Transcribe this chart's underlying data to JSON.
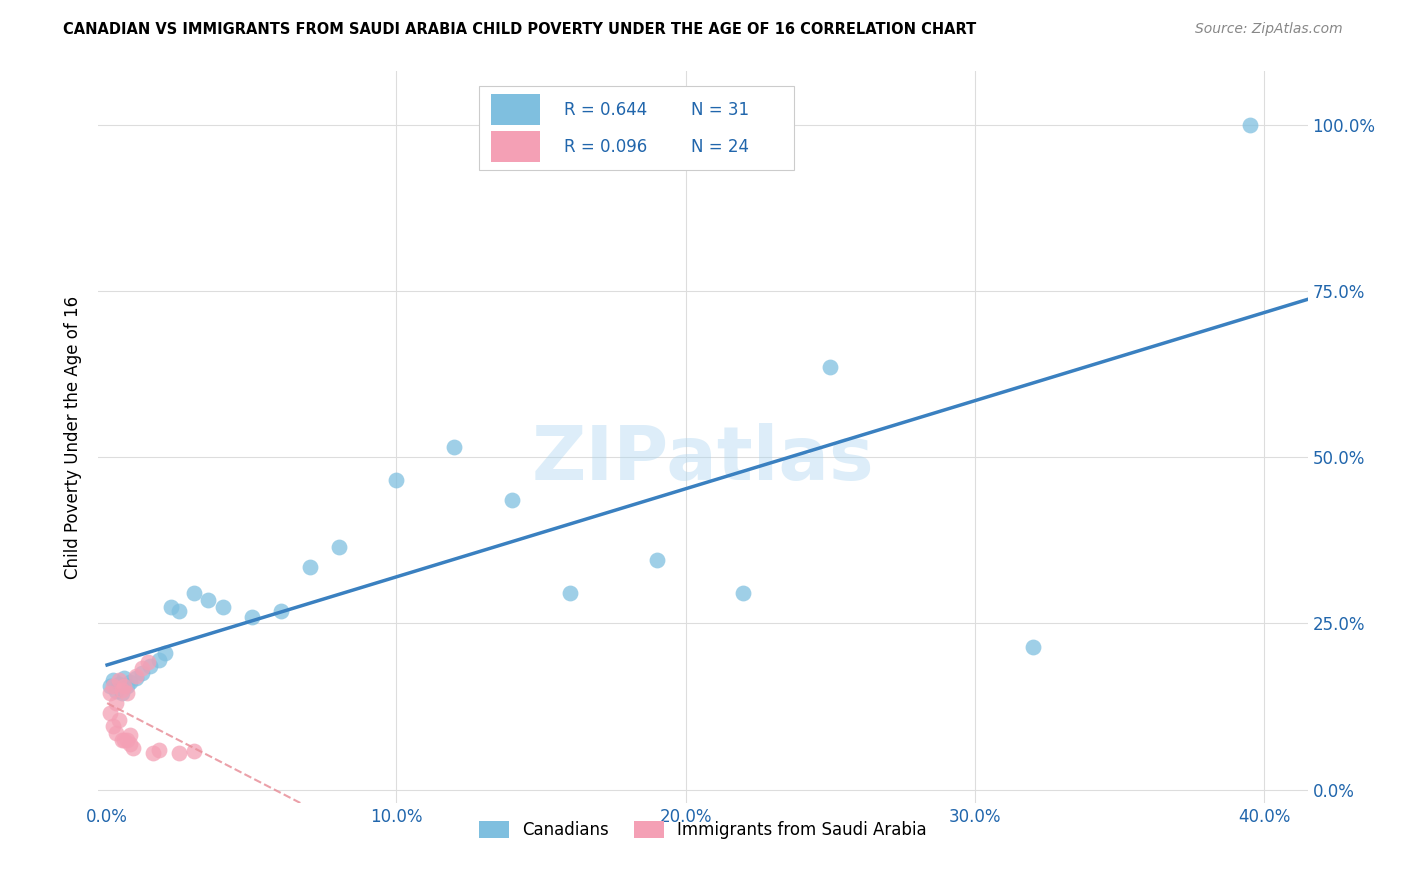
{
  "title": "CANADIAN VS IMMIGRANTS FROM SAUDI ARABIA CHILD POVERTY UNDER THE AGE OF 16 CORRELATION CHART",
  "source": "Source: ZipAtlas.com",
  "ylabel": "Child Poverty Under the Age of 16",
  "R_canadian": 0.644,
  "N_canadian": 31,
  "R_saudi": 0.096,
  "N_saudi": 24,
  "canadian_color": "#7fbfdf",
  "saudi_color": "#f4a0b5",
  "canadian_line_color": "#3a80c0",
  "saudi_line_color": "#e8909a",
  "watermark": "ZIPatlas",
  "background_color": "#ffffff",
  "grid_color": "#dddddd",
  "can_x": [
    0.001,
    0.002,
    0.003,
    0.004,
    0.005,
    0.006,
    0.007,
    0.008,
    0.01,
    0.012,
    0.015,
    0.018,
    0.02,
    0.022,
    0.025,
    0.03,
    0.035,
    0.04,
    0.05,
    0.06,
    0.07,
    0.08,
    0.1,
    0.12,
    0.14,
    0.16,
    0.19,
    0.22,
    0.25,
    0.32,
    0.395
  ],
  "can_y": [
    0.155,
    0.165,
    0.148,
    0.158,
    0.145,
    0.168,
    0.155,
    0.162,
    0.168,
    0.175,
    0.185,
    0.195,
    0.205,
    0.275,
    0.268,
    0.295,
    0.285,
    0.275,
    0.26,
    0.268,
    0.335,
    0.365,
    0.465,
    0.515,
    0.435,
    0.295,
    0.345,
    0.295,
    0.635,
    0.215,
    1.0
  ],
  "saudi_x": [
    0.001,
    0.001,
    0.002,
    0.002,
    0.003,
    0.003,
    0.004,
    0.004,
    0.005,
    0.005,
    0.006,
    0.006,
    0.007,
    0.007,
    0.008,
    0.008,
    0.009,
    0.01,
    0.012,
    0.014,
    0.016,
    0.018,
    0.025,
    0.03
  ],
  "saudi_y": [
    0.145,
    0.115,
    0.155,
    0.095,
    0.13,
    0.085,
    0.105,
    0.165,
    0.15,
    0.075,
    0.075,
    0.155,
    0.145,
    0.075,
    0.082,
    0.068,
    0.062,
    0.17,
    0.182,
    0.192,
    0.055,
    0.06,
    0.055,
    0.058
  ],
  "xlim": [
    0.0,
    0.4
  ],
  "ylim": [
    0.0,
    1.05
  ]
}
